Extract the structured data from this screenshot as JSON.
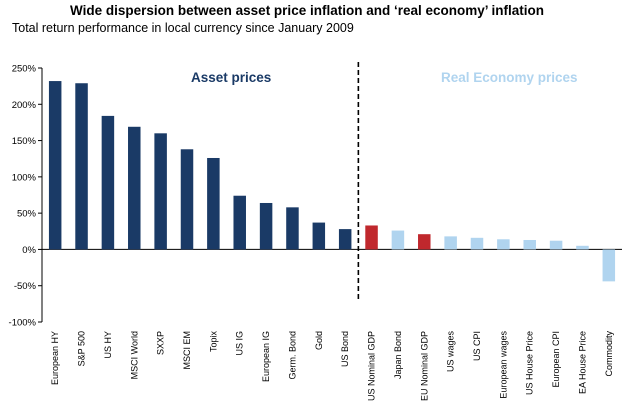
{
  "chart_data": {
    "type": "bar",
    "title": "Wide dispersion between asset price inflation and ‘real economy’ inflation",
    "subtitle": "Total return performance in local currency since January 2009",
    "xlabel": "",
    "ylabel": "",
    "ylim": [
      -100,
      250
    ],
    "yticks": [
      250,
      200,
      150,
      100,
      50,
      0,
      -50,
      -100
    ],
    "ytick_labels": [
      "250%",
      "200%",
      "150%",
      "100%",
      "50%",
      "0%",
      "-50%",
      "-100%"
    ],
    "groups": [
      {
        "label": "Asset prices",
        "color": "#1a3a66"
      },
      {
        "label": "Real Economy prices",
        "color": "#b0d4ef"
      }
    ],
    "categories": [
      "European HY",
      "S&P 500",
      "US HY",
      "MSCI World",
      "SXXP",
      "MSCI EM",
      "Topix",
      "US IG",
      "European IG",
      "Germ. Bond",
      "Gold",
      "US Bond",
      "US Nominal GDP",
      "Japan Bond",
      "EU Nominal GDP",
      "US wages",
      "US CPI",
      "European wages",
      "US House Price",
      "European CPI",
      "EA House Price",
      "Commodity"
    ],
    "values": [
      232,
      229,
      184,
      169,
      160,
      138,
      126,
      74,
      64,
      58,
      37,
      28,
      33,
      26,
      21,
      18,
      16,
      14,
      13,
      12,
      5,
      -44
    ],
    "colors": [
      "#1a3a66",
      "#1a3a66",
      "#1a3a66",
      "#1a3a66",
      "#1a3a66",
      "#1a3a66",
      "#1a3a66",
      "#1a3a66",
      "#1a3a66",
      "#1a3a66",
      "#1a3a66",
      "#1a3a66",
      "#c0282d",
      "#b0d4ef",
      "#c0282d",
      "#b0d4ef",
      "#b0d4ef",
      "#b0d4ef",
      "#b0d4ef",
      "#b0d4ef",
      "#b0d4ef",
      "#b0d4ef"
    ]
  }
}
